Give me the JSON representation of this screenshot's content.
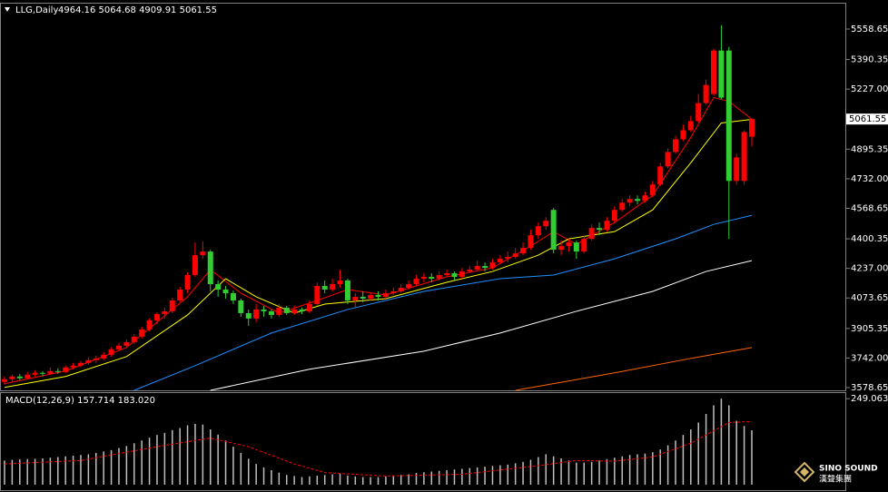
{
  "chart_data": [
    {
      "type": "candlestick",
      "title": "LLG,Daily",
      "ohlc_text": "4964.16 5064.68 4909.91 5061.55",
      "open": [
        3610,
        3625,
        3640,
        3630,
        3650,
        3660,
        3655,
        3670,
        3665,
        3690,
        3700,
        3715,
        3730,
        3740,
        3760,
        3790,
        3810,
        3830,
        3860,
        3900,
        3950,
        3985,
        4000,
        4060,
        4120,
        4200,
        4310,
        4330,
        4150,
        4120,
        4100,
        4060,
        3990,
        3960,
        4010,
        4000,
        3980,
        4020,
        3990,
        4010,
        4000,
        4040,
        4140,
        4120,
        4150,
        4170,
        4060,
        4080,
        4070,
        4090,
        4080,
        4100,
        4110,
        4130,
        4150,
        4180,
        4190,
        4180,
        4200,
        4210,
        4190,
        4220,
        4230,
        4250,
        4240,
        4270,
        4290,
        4300,
        4320,
        4350,
        4420,
        4470,
        4560,
        4340,
        4360,
        4380,
        4330,
        4400,
        4460,
        4450,
        4500,
        4560,
        4600,
        4620,
        4610,
        4640,
        4700,
        4800,
        4880,
        4950,
        5000,
        5050,
        5150,
        5200,
        5440,
        5440,
        4720,
        4720,
        4964.16
      ],
      "high": [
        3640,
        3650,
        3655,
        3665,
        3675,
        3670,
        3690,
        3685,
        3700,
        3715,
        3725,
        3745,
        3755,
        3775,
        3800,
        3825,
        3845,
        3875,
        3915,
        3960,
        3995,
        4020,
        4075,
        4135,
        4215,
        4380,
        4385,
        4340,
        4170,
        4140,
        4115,
        4070,
        4010,
        4040,
        4030,
        4010,
        4040,
        4030,
        4030,
        4020,
        4060,
        4160,
        4170,
        4180,
        4230,
        4180,
        4100,
        4110,
        4100,
        4110,
        4120,
        4130,
        4150,
        4170,
        4200,
        4210,
        4210,
        4220,
        4230,
        4220,
        4240,
        4250,
        4280,
        4270,
        4290,
        4310,
        4330,
        4350,
        4380,
        4450,
        4490,
        4520,
        4570,
        4390,
        4400,
        4390,
        4420,
        4480,
        4490,
        4520,
        4580,
        4620,
        4640,
        4640,
        4660,
        4720,
        4820,
        4900,
        4970,
        5030,
        5080,
        5200,
        5280,
        5450,
        5580,
        5460,
        4870,
        5000,
        5064.68
      ],
      "low": [
        3595,
        3610,
        3620,
        3625,
        3640,
        3640,
        3650,
        3655,
        3660,
        3680,
        3690,
        3705,
        3715,
        3730,
        3750,
        3780,
        3800,
        3820,
        3850,
        3890,
        3930,
        3960,
        3990,
        4050,
        4100,
        4190,
        4290,
        4110,
        4080,
        4070,
        4040,
        3970,
        3920,
        3940,
        3970,
        3960,
        3970,
        3980,
        3980,
        3985,
        3990,
        4030,
        4100,
        4110,
        4130,
        4040,
        4020,
        4050,
        4060,
        4060,
        4070,
        4090,
        4100,
        4120,
        4140,
        4160,
        4160,
        4170,
        4190,
        4170,
        4180,
        4210,
        4220,
        4220,
        4230,
        4260,
        4270,
        4290,
        4310,
        4340,
        4400,
        4450,
        4320,
        4310,
        4330,
        4290,
        4320,
        4390,
        4420,
        4440,
        4490,
        4550,
        4580,
        4590,
        4600,
        4630,
        4690,
        4790,
        4870,
        4940,
        4990,
        5040,
        5140,
        5190,
        5170,
        4400,
        4700,
        4700,
        4909.91
      ],
      "close": [
        3625,
        3640,
        3630,
        3650,
        3660,
        3655,
        3670,
        3665,
        3690,
        3700,
        3715,
        3730,
        3740,
        3760,
        3790,
        3810,
        3830,
        3860,
        3900,
        3950,
        3985,
        4000,
        4060,
        4120,
        4200,
        4310,
        4330,
        4150,
        4120,
        4100,
        4060,
        3990,
        3960,
        4010,
        4000,
        3980,
        4020,
        3990,
        4010,
        4000,
        4040,
        4140,
        4120,
        4150,
        4170,
        4060,
        4080,
        4070,
        4090,
        4080,
        4100,
        4110,
        4130,
        4150,
        4180,
        4190,
        4180,
        4200,
        4210,
        4190,
        4220,
        4230,
        4250,
        4240,
        4270,
        4290,
        4300,
        4320,
        4350,
        4420,
        4470,
        4500,
        4340,
        4360,
        4380,
        4330,
        4400,
        4460,
        4450,
        4500,
        4560,
        4600,
        4620,
        4610,
        4640,
        4700,
        4800,
        4880,
        4950,
        5000,
        5050,
        5150,
        5250,
        5440,
        5180,
        4720,
        4850,
        4990,
        5061.55
      ],
      "up_color": "#ff0000",
      "down_color": "#32cd32",
      "moving_averages": [
        {
          "color": "#ff0000",
          "x": [
            0,
            8,
            16,
            24,
            27,
            31,
            36,
            41,
            45,
            50,
            58,
            64,
            69,
            72,
            75,
            80,
            85,
            90,
            93,
            95,
            98
          ],
          "values": [
            3600,
            3670,
            3800,
            4080,
            4230,
            4100,
            3990,
            4060,
            4120,
            4090,
            4190,
            4240,
            4360,
            4440,
            4370,
            4490,
            4640,
            4960,
            5180,
            5160,
            5060
          ]
        },
        {
          "color": "#ffff00",
          "x": [
            0,
            8,
            16,
            24,
            29,
            33,
            38,
            42,
            50,
            58,
            64,
            70,
            74,
            80,
            85,
            90,
            94,
            98
          ],
          "values": [
            3580,
            3640,
            3750,
            3980,
            4180,
            4080,
            3990,
            4040,
            4070,
            4160,
            4220,
            4310,
            4400,
            4440,
            4560,
            4820,
            5040,
            5060
          ]
        },
        {
          "color": "#1e90ff",
          "x": [
            17,
            25,
            35,
            45,
            55,
            65,
            72,
            80,
            88,
            93,
            98
          ],
          "values": [
            3563.6,
            3700,
            3880,
            4010,
            4110,
            4180,
            4200,
            4290,
            4400,
            4480,
            4530
          ]
        },
        {
          "color": "#ffffff",
          "x": [
            27,
            40,
            55,
            65,
            75,
            85,
            92,
            98
          ],
          "values": [
            3563.6,
            3680,
            3780,
            3880,
            4000,
            4110,
            4220,
            4280
          ]
        },
        {
          "color": "#ff6600",
          "x": [
            67,
            80,
            90,
            98
          ],
          "values": [
            3563.6,
            3660,
            3740,
            3800
          ]
        }
      ],
      "last_price": 5061.55,
      "ylim": [
        3563.6,
        5694
      ],
      "yticks": [
        5558.65,
        5390.35,
        {
          "value": 5227,
          "label": "5227.00"
        },
        4895.35,
        {
          "value": 4732,
          "label": "4732.00"
        },
        4568.65,
        4400.35,
        {
          "value": 4237,
          "label": "4237.00"
        },
        4073.65,
        3905.35,
        {
          "value": 3742,
          "label": "3742.00"
        },
        3578.65
      ]
    },
    {
      "type": "macd",
      "title": "MACD(12,26,9) 157.714 183.020",
      "color": "#c0c0c0",
      "values": [
        70,
        72,
        73,
        74,
        75,
        76,
        78,
        80,
        82,
        84,
        86,
        88,
        92,
        96,
        100,
        106,
        112,
        120,
        128,
        136,
        144,
        150,
        158,
        164,
        172,
        176,
        174,
        160,
        145,
        128,
        110,
        92,
        75,
        60,
        50,
        42,
        35,
        28,
        25,
        22,
        24,
        26,
        28,
        30,
        32,
        26,
        24,
        22,
        22,
        22,
        24,
        26,
        28,
        30,
        34,
        36,
        38,
        40,
        42,
        44,
        46,
        48,
        50,
        52,
        54,
        56,
        58,
        62,
        66,
        72,
        80,
        88,
        82,
        76,
        70,
        64,
        64,
        66,
        70,
        74,
        78,
        82,
        86,
        88,
        90,
        94,
        102,
        114,
        128,
        144,
        160,
        180,
        205,
        230,
        249,
        230,
        185,
        170,
        157.714
      ],
      "signal": {
        "color": "#ff0000",
        "x": [
          0,
          10,
          20,
          27,
          32,
          38,
          42,
          50,
          60,
          70,
          75,
          80,
          85,
          90,
          95,
          98
        ],
        "values": [
          60,
          70,
          110,
          135,
          110,
          60,
          35,
          25,
          30,
          55,
          70,
          68,
          80,
          120,
          180,
          183.02
        ]
      },
      "ylim": [
        -16,
        268
      ],
      "yticks": [
        249.063
      ]
    }
  ],
  "watermark": {
    "brand": "SINO SOUND",
    "brand_cn": "漢聲集團"
  }
}
